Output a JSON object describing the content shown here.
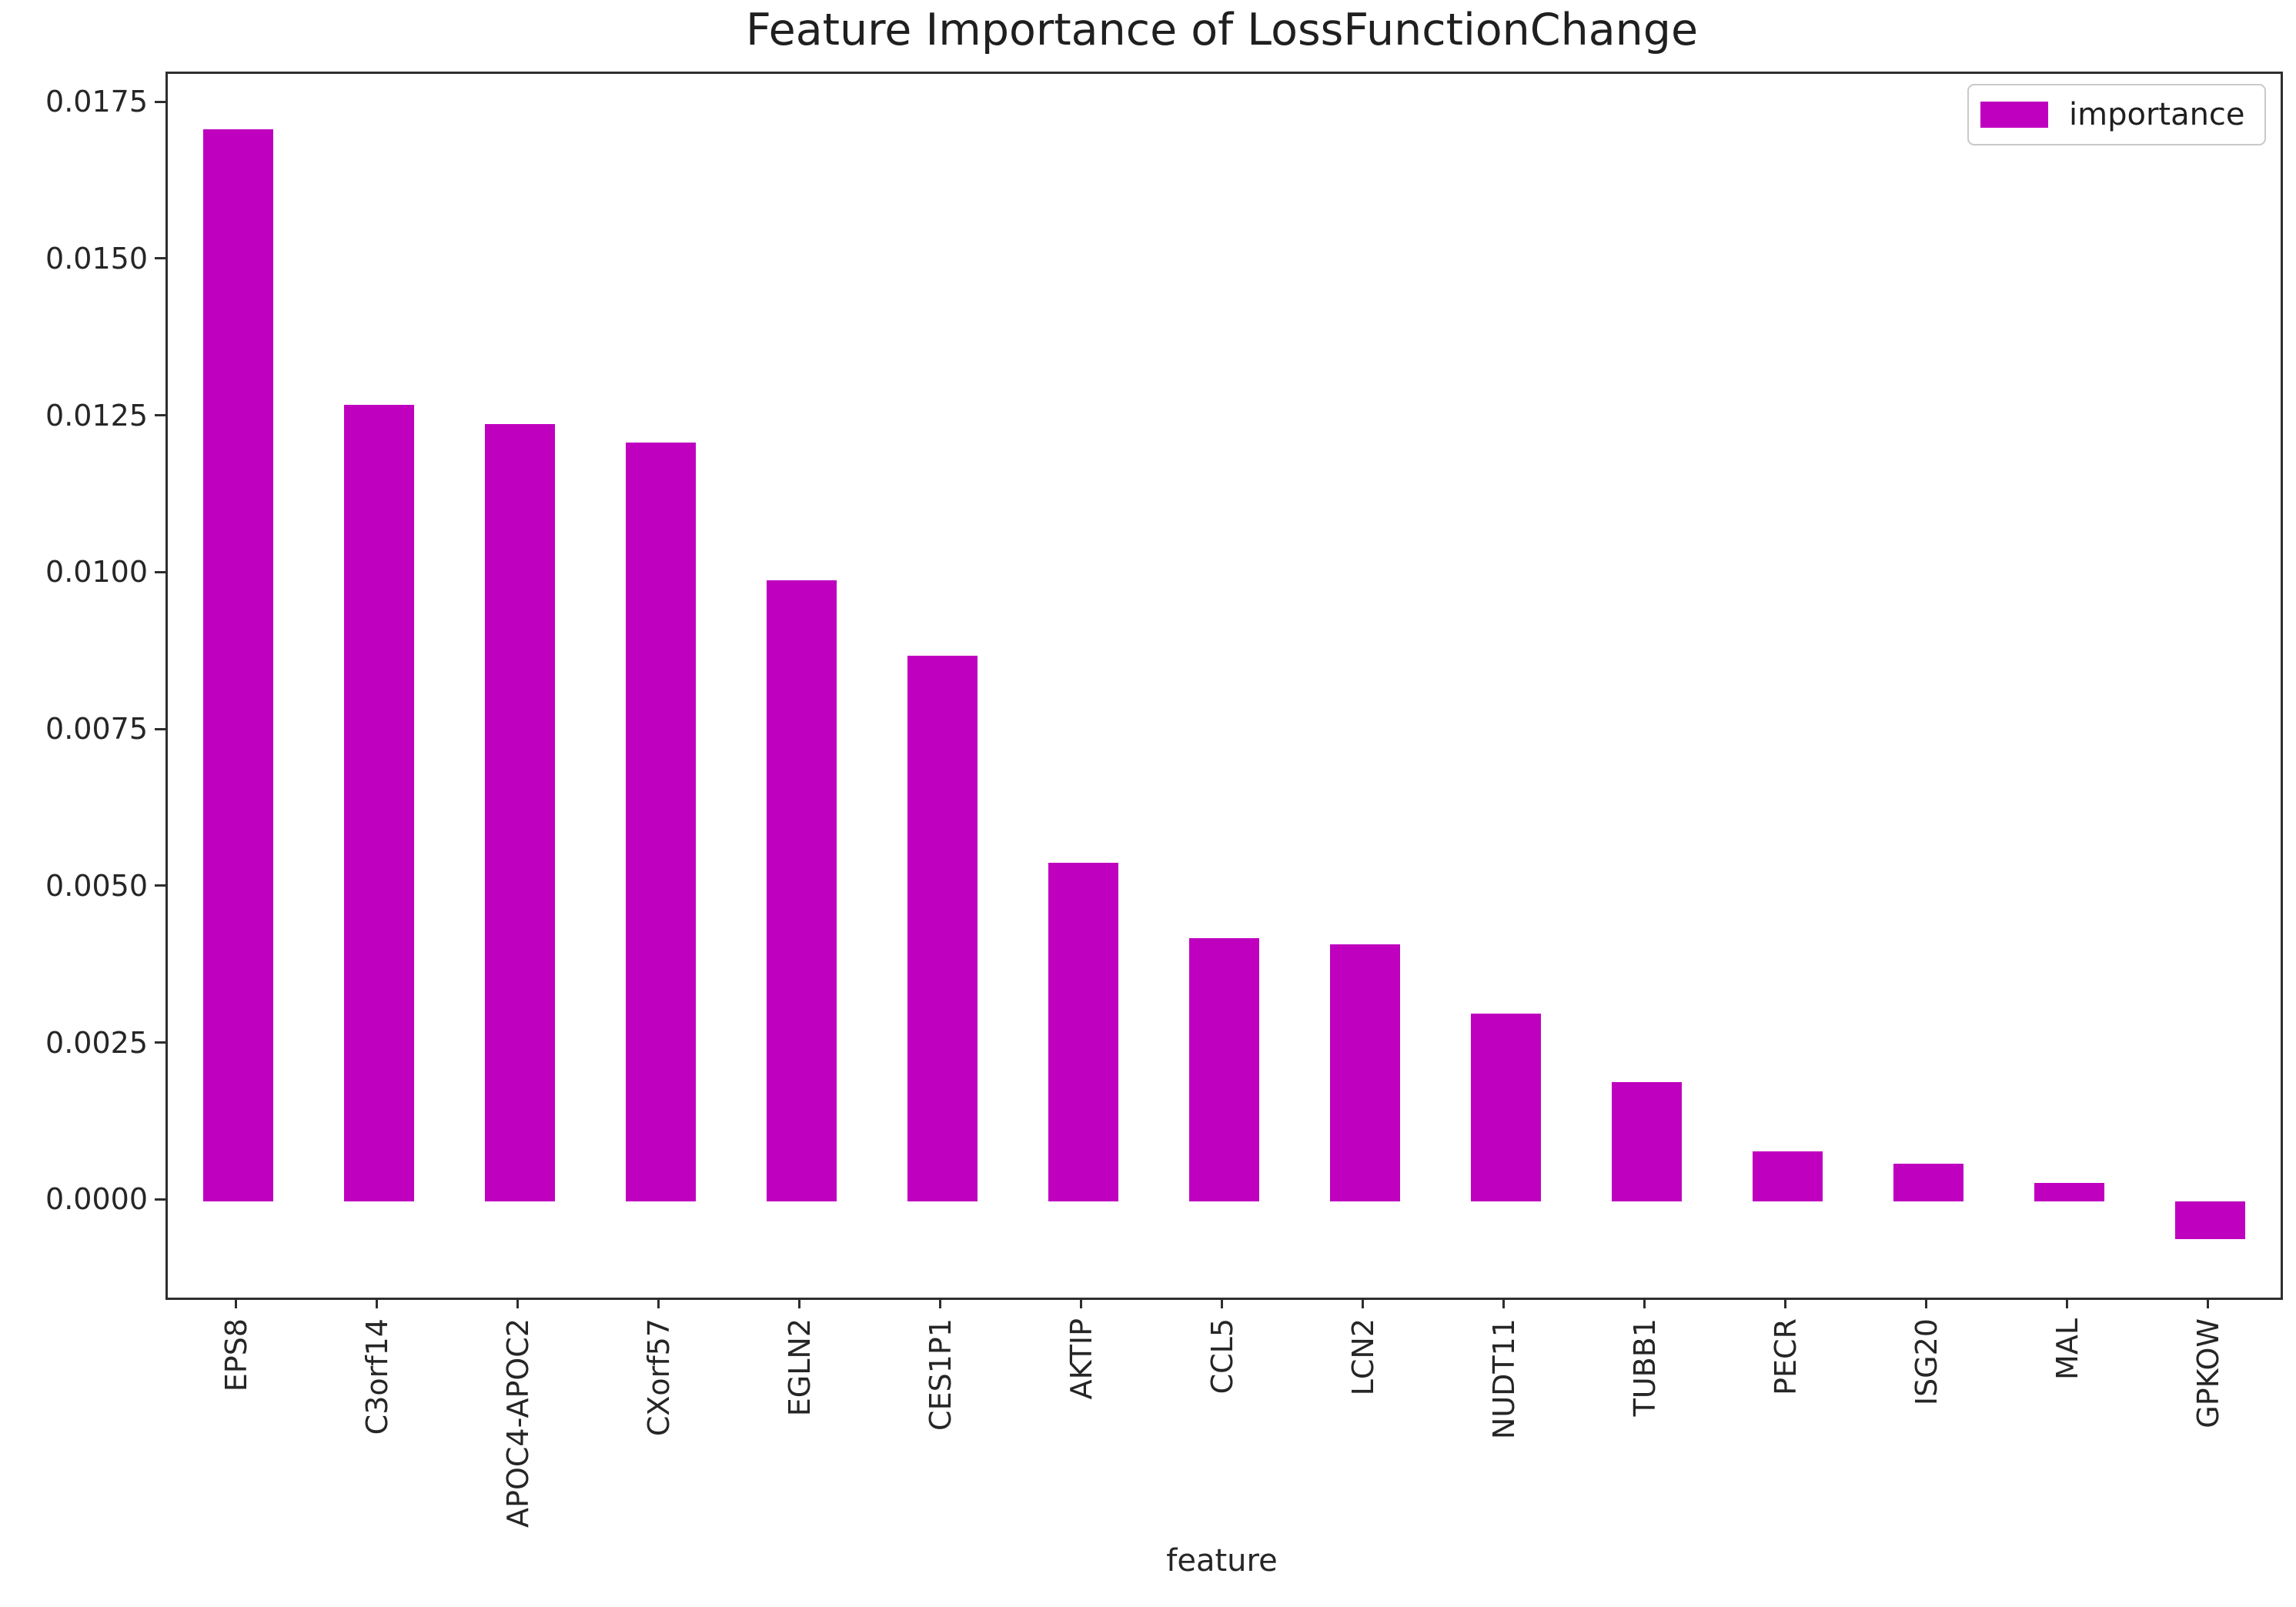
{
  "chart_data": {
    "type": "bar",
    "title": "Feature Importance of LossFunctionChange",
    "xlabel": "feature",
    "ylabel": "",
    "legend": {
      "label": "importance",
      "position": "upper right"
    },
    "bar_color": "#BF00BF",
    "categories": [
      "EPS8",
      "C3orf14",
      "APOC4-APOC2",
      "CXorf57",
      "EGLN2",
      "CES1P1",
      "AKTIP",
      "CCL5",
      "LCN2",
      "NUDT11",
      "TUBB1",
      "PECR",
      "ISG20",
      "MAL",
      "GPKOW"
    ],
    "values": [
      0.0171,
      0.0127,
      0.0124,
      0.0121,
      0.0099,
      0.0087,
      0.0054,
      0.0042,
      0.0041,
      0.003,
      0.0019,
      0.0008,
      0.0006,
      0.0003,
      -0.0006
    ],
    "series": [
      {
        "name": "importance",
        "values": [
          0.0171,
          0.0127,
          0.0124,
          0.0121,
          0.0099,
          0.0087,
          0.0054,
          0.0042,
          0.0041,
          0.003,
          0.0019,
          0.0008,
          0.0006,
          0.0003,
          -0.0006
        ]
      }
    ],
    "yticks": [
      0.0,
      0.0025,
      0.005,
      0.0075,
      0.01,
      0.0125,
      0.015,
      0.0175
    ],
    "ytick_decimals": 4,
    "ylim": [
      -0.00153,
      0.01798
    ],
    "grid": false,
    "x_tick_rotation": 90,
    "bar_width_ratio": 0.5
  }
}
